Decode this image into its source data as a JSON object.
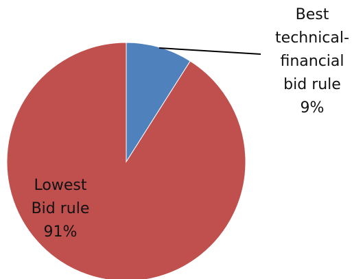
{
  "chart_data": {
    "type": "pie",
    "title": "",
    "slices": [
      {
        "label_lines": [
          "Best",
          "technical-",
          "financial",
          "bid rule",
          "9%"
        ],
        "value": 9,
        "color": "#4f81bd"
      },
      {
        "label_lines": [
          "Lowest",
          "Bid rule",
          "91%"
        ],
        "value": 91,
        "color": "#c0504d"
      }
    ],
    "start_angle": "12 o'clock",
    "direction": "clockwise",
    "legend": "none"
  }
}
